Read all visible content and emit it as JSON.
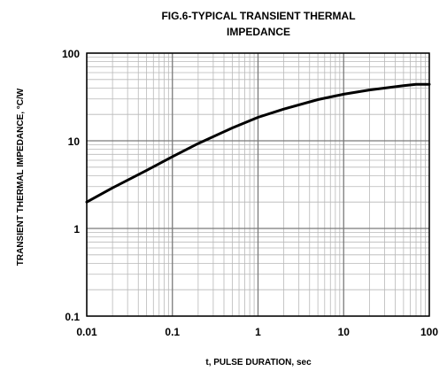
{
  "chart_data": {
    "type": "line",
    "title_line1": "FIG.6-TYPICAL TRANSIENT THERMAL",
    "title_line2": "IMPEDANCE",
    "xlabel": "t, PULSE DURATION, sec",
    "ylabel": "TRANSIENT THERMAL IMPEDANCE, °C/W",
    "x_scale": "log",
    "y_scale": "log",
    "xlim": [
      0.01,
      100
    ],
    "ylim": [
      0.1,
      100
    ],
    "x_ticks": [
      0.01,
      0.1,
      1,
      10,
      100
    ],
    "x_tick_labels": [
      "0.01",
      "0.1",
      "1",
      "10",
      "100"
    ],
    "y_ticks": [
      0.1,
      1,
      10,
      100
    ],
    "y_tick_labels": [
      "0.1",
      "1",
      "10",
      "100"
    ],
    "grid": true,
    "series": [
      {
        "x": [
          0.01,
          0.02,
          0.05,
          0.1,
          0.2,
          0.5,
          1,
          2,
          5,
          10,
          20,
          50,
          70,
          100
        ],
        "y": [
          2.0,
          2.9,
          4.6,
          6.6,
          9.3,
          14,
          18.5,
          23,
          29.5,
          34,
          38,
          42.5,
          44,
          44
        ]
      }
    ]
  }
}
